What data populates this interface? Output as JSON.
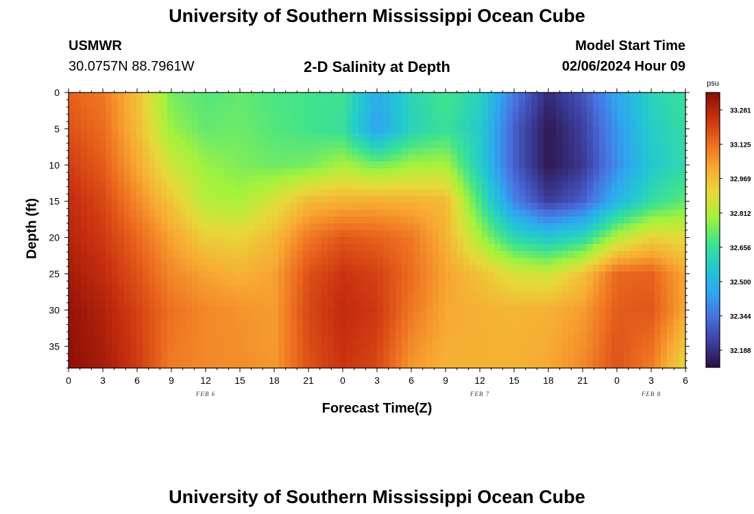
{
  "page": {
    "title": "University of Southern Mississippi Ocean Cube",
    "footer_title": "University of Southern Mississippi Ocean Cube",
    "station_name": "USMWR",
    "station_coords": "30.0757N  88.7961W",
    "plot_title": "2-D Salinity at Depth",
    "model_start_label": "Model Start Time",
    "model_start_value": "02/06/2024 Hour 09"
  },
  "chart_data": {
    "type": "heatmap",
    "title": "2-D Salinity at Depth",
    "xlabel": "Forecast Time(Z)",
    "ylabel": "Depth (ft)",
    "x_tick_labels": [
      "0",
      "3",
      "6",
      "9",
      "12",
      "15",
      "18",
      "21",
      "0",
      "3",
      "6",
      "9",
      "12",
      "15",
      "18",
      "21",
      "0",
      "3",
      "6"
    ],
    "date_labels": [
      {
        "text": "FEB 6",
        "forecast_hour": 12
      },
      {
        "text": "FEB 7",
        "forecast_hour": 36
      },
      {
        "text": "FEB 8",
        "forecast_hour": 51
      }
    ],
    "x_range_hours": [
      0,
      54
    ],
    "y_ticks": [
      0,
      5,
      10,
      15,
      20,
      25,
      30,
      35
    ],
    "y_range_ft": [
      0,
      38
    ],
    "y_inverted": true,
    "colorbar": {
      "unit": "psu",
      "ticks": [
        "33.281",
        "33.125",
        "32.969",
        "32.812",
        "32.656",
        "32.500",
        "32.344",
        "32.188"
      ],
      "range": [
        32.11,
        33.36
      ],
      "colors": [
        "#2d1043",
        "#3b3e9b",
        "#4a6fe0",
        "#2fa6f0",
        "#22c9cf",
        "#3fe38c",
        "#a4f23c",
        "#e6d93a",
        "#f8a932",
        "#ec6a1f",
        "#c8300f",
        "#8a0d05"
      ]
    },
    "grid_hours": [
      0,
      3,
      6,
      9,
      12,
      15,
      18,
      21,
      24,
      27,
      30,
      33,
      36,
      39,
      42,
      45,
      48,
      51,
      54
    ],
    "grid_depths_ft": [
      0,
      5,
      10,
      15,
      20,
      25,
      30,
      38
    ],
    "salinity_psu": [
      [
        33.15,
        33.11,
        32.97,
        32.74,
        32.7,
        32.72,
        32.69,
        32.68,
        32.67,
        32.47,
        32.61,
        32.68,
        32.6,
        32.36,
        32.18,
        32.28,
        32.46,
        32.6,
        32.66
      ],
      [
        33.18,
        33.13,
        32.98,
        32.78,
        32.72,
        32.73,
        32.7,
        32.68,
        32.65,
        32.44,
        32.6,
        32.66,
        32.57,
        32.3,
        32.13,
        32.23,
        32.42,
        32.58,
        32.64
      ],
      [
        33.22,
        33.16,
        33.02,
        32.86,
        32.78,
        32.75,
        32.73,
        32.74,
        32.8,
        32.74,
        32.79,
        32.8,
        32.58,
        32.3,
        32.13,
        32.21,
        32.4,
        32.56,
        32.63
      ],
      [
        33.26,
        33.2,
        33.08,
        32.95,
        32.82,
        32.8,
        32.88,
        32.98,
        33.0,
        33.01,
        33.0,
        32.98,
        32.68,
        32.38,
        32.22,
        32.3,
        32.5,
        32.64,
        32.72
      ],
      [
        33.28,
        33.23,
        33.14,
        33.03,
        32.93,
        32.92,
        32.98,
        33.11,
        33.17,
        33.15,
        33.11,
        33.0,
        32.8,
        32.62,
        32.56,
        32.62,
        32.82,
        32.92,
        32.9
      ],
      [
        33.31,
        33.26,
        33.18,
        33.08,
        33.03,
        33.0,
        33.03,
        33.18,
        33.24,
        33.21,
        33.13,
        33.03,
        32.96,
        32.88,
        32.86,
        32.96,
        33.14,
        33.15,
        33.02
      ],
      [
        33.34,
        33.29,
        33.21,
        33.12,
        33.08,
        33.06,
        33.04,
        33.2,
        33.26,
        33.23,
        33.11,
        33.02,
        33.0,
        32.99,
        33.0,
        33.04,
        33.16,
        33.17,
        33.02
      ],
      [
        33.35,
        33.31,
        33.23,
        33.1,
        33.08,
        33.07,
        33.05,
        33.18,
        33.24,
        33.2,
        33.05,
        33.0,
        33.0,
        33.0,
        33.02,
        33.08,
        33.18,
        33.1,
        32.9
      ]
    ]
  }
}
